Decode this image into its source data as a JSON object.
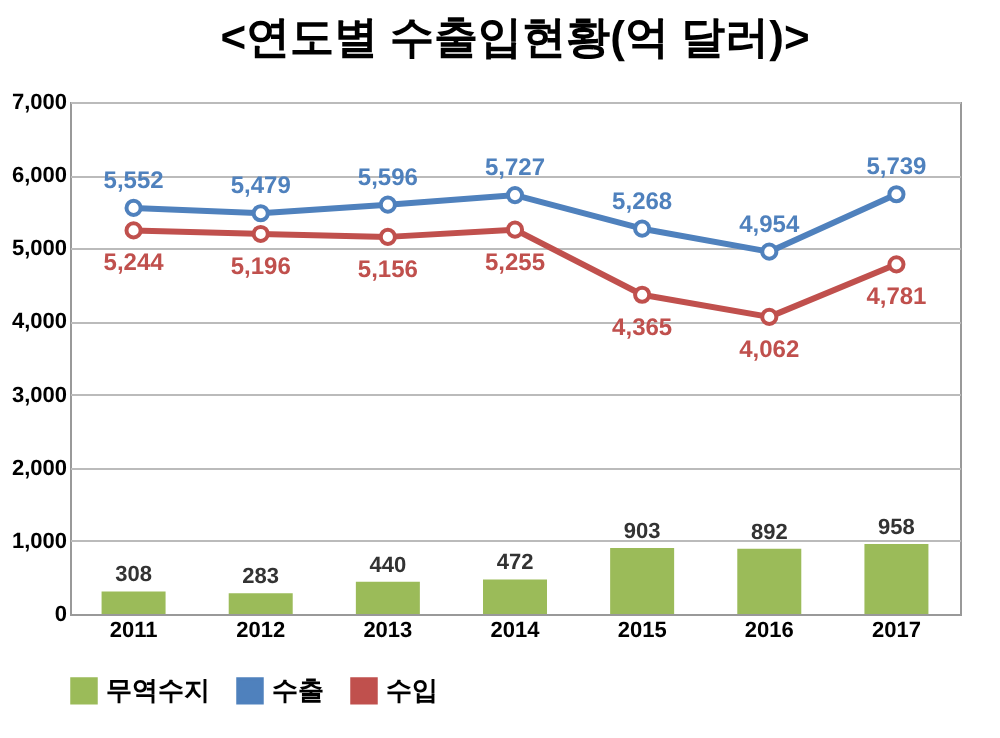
{
  "chart_data": {
    "type": "bar",
    "title": "<연도별 수출입현황(억 달러)>",
    "categories": [
      "2011",
      "2012",
      "2013",
      "2014",
      "2015",
      "2016",
      "2017"
    ],
    "series": [
      {
        "name": "무역수지",
        "color": "#9bbb59",
        "values": [
          308,
          283,
          440,
          472,
          903,
          892,
          958
        ],
        "value_labels": [
          "308",
          "283",
          "440",
          "472",
          "903",
          "892",
          "958"
        ]
      },
      {
        "name": "수출",
        "type": "line",
        "color": "#4f81bd",
        "values": [
          5552,
          5479,
          5596,
          5727,
          5268,
          4954,
          5739
        ],
        "value_labels": [
          "5,552",
          "5,479",
          "5,596",
          "5,727",
          "5,268",
          "4,954",
          "5,739"
        ]
      },
      {
        "name": "수입",
        "type": "line",
        "color": "#c0504d",
        "values": [
          5244,
          5196,
          5156,
          5255,
          4365,
          4062,
          4781
        ],
        "value_labels": [
          "5,244",
          "5,196",
          "5,156",
          "5,255",
          "4,365",
          "4,062",
          "4,781"
        ]
      }
    ],
    "ylim": [
      0,
      7000
    ],
    "yticks": [
      {
        "value": 0,
        "label": "0"
      },
      {
        "value": 1000,
        "label": "1,000"
      },
      {
        "value": 2000,
        "label": "2,000"
      },
      {
        "value": 3000,
        "label": "3,000"
      },
      {
        "value": 4000,
        "label": "4,000"
      },
      {
        "value": 5000,
        "label": "5,000"
      },
      {
        "value": 6000,
        "label": "6,000"
      },
      {
        "value": 7000,
        "label": "7,000"
      }
    ],
    "grid": "y",
    "legend": "bottom",
    "marker": "circle"
  }
}
